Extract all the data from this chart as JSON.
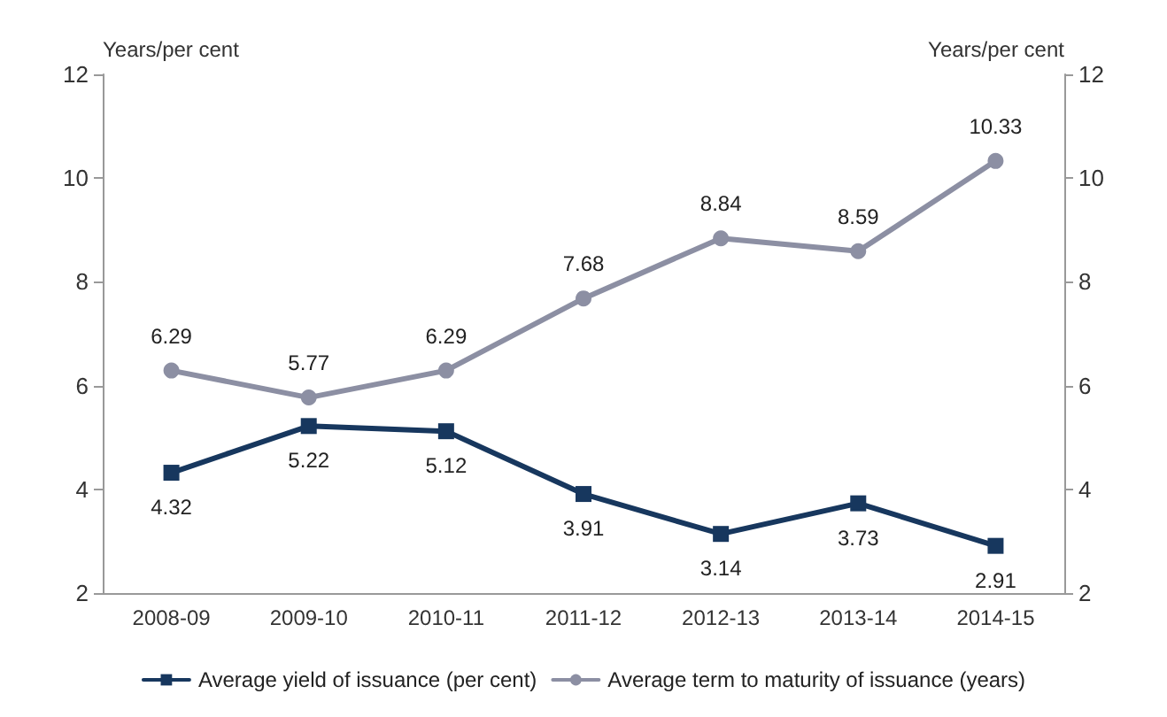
{
  "chart_data": {
    "type": "line",
    "ylabel": "Years/per cent",
    "y2label": "Years/per cent",
    "categories": [
      "2008-09",
      "2009-10",
      "2010-11",
      "2011-12",
      "2012-13",
      "2013-14",
      "2014-15"
    ],
    "series": [
      {
        "name": "Average yield of issuance (per cent)",
        "color": "#17375e",
        "values": [
          4.32,
          5.22,
          5.12,
          3.91,
          3.14,
          3.73,
          2.91
        ],
        "marker": "square"
      },
      {
        "name": "Average term to maturity of issuance (years)",
        "color": "#8c8fa3",
        "values": [
          6.29,
          5.77,
          6.29,
          7.68,
          8.84,
          8.59,
          10.33
        ],
        "marker": "circle"
      }
    ],
    "ylim": [
      2,
      12
    ],
    "yticks": [
      2,
      4,
      6,
      8,
      10,
      12
    ],
    "y2lim": [
      2,
      12
    ],
    "y2ticks": [
      2,
      4,
      6,
      8,
      10,
      12
    ],
    "data_labels": true,
    "grid": false,
    "legend": "bottom",
    "line_style": "solid"
  }
}
